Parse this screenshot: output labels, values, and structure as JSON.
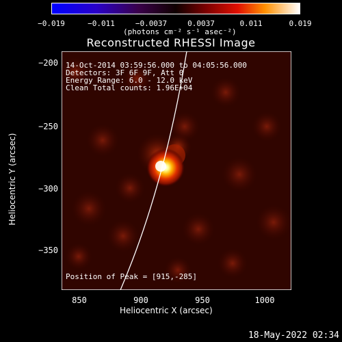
{
  "colorbar": {
    "ticks": [
      "−0.019",
      "−0.011",
      "−0.0037",
      "0.0037",
      "0.011",
      "0.019"
    ],
    "units": "(photons cm⁻² s⁻¹ asec⁻²)"
  },
  "title": "Reconstructed RHESSI Image",
  "info": {
    "time": "14-Oct-2014 03:59:56.000 to 04:05:56.000",
    "detectors": "Detectors: 3F 6F 9F, Att 0",
    "energy": "Energy Range: 6.0 - 12.0 keV",
    "clean": "Clean     Total counts: 1.96E+04",
    "peak": "Position of Peak = [915,-285]"
  },
  "axes": {
    "xlabel": "Heliocentric X (arcsec)",
    "ylabel": "Heliocentric Y (arcsec)",
    "xticks": [
      "850",
      "900",
      "950",
      "1000"
    ],
    "yticks": [
      "−200",
      "−250",
      "−300",
      "−350"
    ]
  },
  "timestamp": "18-May-2022 02:34",
  "colors": {
    "bg": "#000000",
    "limb": "#ffffff"
  }
}
